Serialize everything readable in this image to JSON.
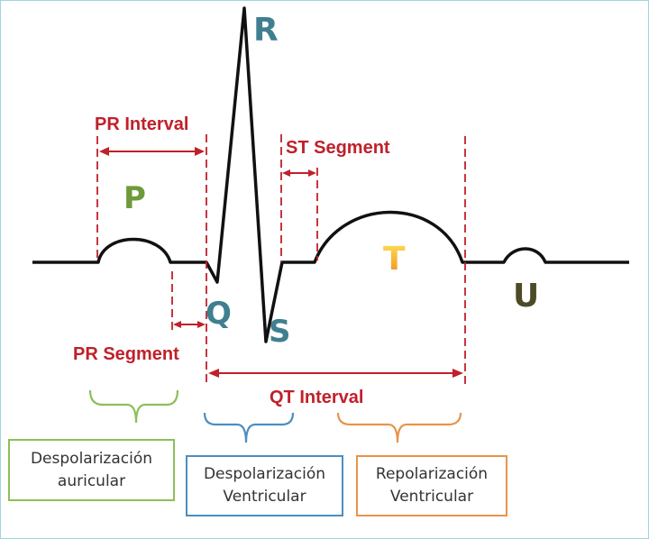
{
  "waves": {
    "p": "P",
    "q": "Q",
    "r": "R",
    "s": "S",
    "t": "T",
    "u": "U"
  },
  "intervals": {
    "pr_interval": "PR Interval",
    "st_segment": "ST Segment",
    "pr_segment": "PR Segment",
    "qt_interval": "QT Interval"
  },
  "phases": {
    "atrial": {
      "line1": "Despolarización",
      "line2": "auricular",
      "color": "#8cbf5a"
    },
    "ventricular_depol": {
      "line1": "Despolarización",
      "line2": "Ventricular",
      "color": "#4a8ec2"
    },
    "ventricular_repol": {
      "line1": "Repolarización",
      "line2": "Ventricular",
      "color": "#e8944a"
    }
  },
  "colors": {
    "interval_red": "#c0202a",
    "trace": "#111111",
    "p_wave": "#6f9a3a",
    "qrs_letters": "#3f7f8f",
    "t_wave": "#f2b626",
    "u_wave": "#4d4a28"
  }
}
